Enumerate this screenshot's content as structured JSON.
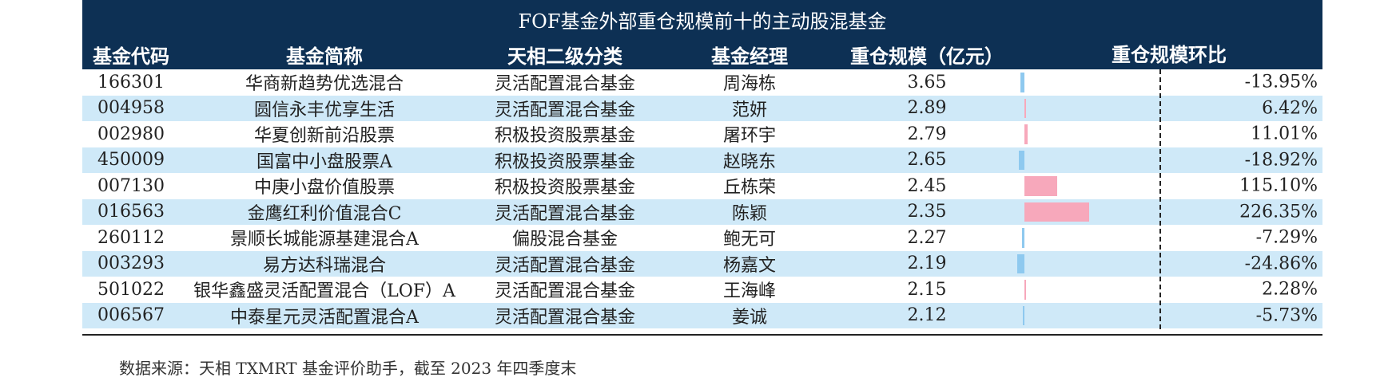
{
  "title": "FOF基金外部重仓规模前十的主动股混基金",
  "headers": [
    "基金代码",
    "基金简称",
    "天相二级分类",
    "基金经理",
    "重仓规模（亿元）",
    "重仓规模环比"
  ],
  "rows": [
    {
      "code": "166301",
      "name": "华商新趋势优选混合",
      "category": "灵活配置混合基金",
      "manager": "周海栋",
      "scale": "3.65",
      "change": "-13.95%",
      "change_value": -13.95
    },
    {
      "code": "004958",
      "name": "圆信永丰优享生活",
      "category": "灵活配置混合基金",
      "manager": "范妍",
      "scale": "2.89",
      "change": "6.42%",
      "change_value": 6.42
    },
    {
      "code": "002980",
      "name": "华夏创新前沿股票",
      "category": "积极投资股票基金",
      "manager": "屠环宇",
      "scale": "2.79",
      "change": "11.01%",
      "change_value": 11.01
    },
    {
      "code": "450009",
      "name": "国富中小盘股票A",
      "category": "积极投资股票基金",
      "manager": "赵晓东",
      "scale": "2.65",
      "change": "-18.92%",
      "change_value": -18.92
    },
    {
      "code": "007130",
      "name": "中庚小盘价值股票",
      "category": "积极投资股票基金",
      "manager": "丘栋荣",
      "scale": "2.45",
      "change": "115.10%",
      "change_value": 115.1
    },
    {
      "code": "016563",
      "name": "金鹰红利价值混合C",
      "category": "灵活配置混合基金",
      "manager": "陈颖",
      "scale": "2.35",
      "change": "226.35%",
      "change_value": 226.35
    },
    {
      "code": "260112",
      "name": "景顺长城能源基建混合A",
      "category": "偏股混合基金",
      "manager": "鲍无可",
      "scale": "2.27",
      "change": "-7.29%",
      "change_value": -7.29
    },
    {
      "code": "003293",
      "name": "易方达科瑞混合",
      "category": "灵活配置混合基金",
      "manager": "杨嘉文",
      "scale": "2.19",
      "change": "-24.86%",
      "change_value": -24.86
    },
    {
      "code": "501022",
      "name": "银华鑫盛灵活配置混合（LOF）A",
      "category": "灵活配置混合基金",
      "manager": "王海峰",
      "scale": "2.15",
      "change": "2.28%",
      "change_value": 2.28
    },
    {
      "code": "006567",
      "name": "中泰星元灵活配置混合A",
      "category": "灵活配置混合基金",
      "manager": "姜诚",
      "scale": "2.12",
      "change": "-5.73%",
      "change_value": -5.73
    }
  ],
  "colors": {
    "header_bg": "#0d3054",
    "alt_row": "#cfe9f8",
    "pos_bar": "#f7a8bb",
    "neg_bar": "#8ec9ef"
  },
  "source": "数据来源：天相 TXMRT 基金评价助手，截至 2023 年四季度末"
}
